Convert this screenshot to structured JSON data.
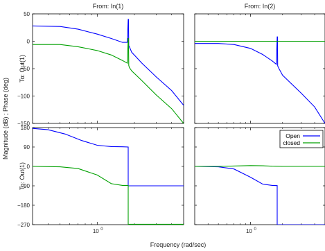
{
  "chart_data": {
    "type": "line",
    "title": "",
    "column_titles": [
      "From: In(1)",
      "From: In(2)"
    ],
    "row_labels": [
      "To: Out(1)",
      "To: Out(1)"
    ],
    "ylabel": "Magnitude (dB) ; Phase (deg)",
    "xlabel": "Frequency  (rad/sec)",
    "x_scale": "log",
    "x_ticks": [
      1
    ],
    "x_tick_labels": [
      "10",
      "10"
    ],
    "x_tick_exponent": "0",
    "xlim": [
      0.3,
      5
    ],
    "magnitude_ylim": [
      -150,
      50
    ],
    "magnitude_yticks": [
      50,
      0,
      -50,
      -100,
      -150
    ],
    "magnitude_ytick_labels": [
      "50",
      "0",
      "−50",
      "−100",
      "−150"
    ],
    "phase_ylim": [
      -270,
      180
    ],
    "phase_yticks": [
      180,
      90,
      0,
      -90,
      -180,
      -270
    ],
    "phase_ytick_labels": [
      "180",
      "90",
      "0",
      "−90",
      "−180",
      "−270"
    ],
    "colors": {
      "open": "#0000ff",
      "closed": "#00a000"
    },
    "legend": {
      "entries": [
        "Open",
        "closed"
      ],
      "location": "top-right of lower-right panel"
    },
    "panels": [
      {
        "row": 0,
        "col": 0,
        "kind": "magnitude",
        "series": [
          {
            "name": "Open",
            "x": [
              0.3,
              0.5,
              0.7,
              1.0,
              1.3,
              1.6,
              1.75,
              1.78,
              1.79,
              1.8,
              1.82,
              1.9,
              2.3,
              3.0,
              4.0,
              5.0
            ],
            "y": [
              28,
              27,
              22,
              13,
              5,
              -2,
              -2,
              40,
              40,
              -8,
              -10,
              -20,
              -40,
              -65,
              -90,
              -117
            ]
          },
          {
            "name": "closed",
            "x": [
              0.3,
              0.5,
              0.7,
              1.0,
              1.3,
              1.6,
              1.75,
              1.78,
              1.79,
              1.8,
              1.82,
              1.9,
              2.3,
              3.0,
              4.0,
              5.0
            ],
            "y": [
              -6,
              -6,
              -10,
              -17,
              -25,
              -35,
              -40,
              5,
              5,
              -44,
              -48,
              -54,
              -72,
              -98,
              -123,
              -150
            ]
          }
        ]
      },
      {
        "row": 0,
        "col": 1,
        "kind": "magnitude",
        "series": [
          {
            "name": "Open",
            "x": [
              0.3,
              0.5,
              0.7,
              1.0,
              1.3,
              1.6,
              1.75,
              1.78,
              1.79,
              1.8,
              1.85,
              2.0,
              3.0,
              4.0,
              5.0
            ],
            "y": [
              -4,
              -4,
              -6,
              -13,
              -24,
              -36,
              -42,
              8,
              8,
              -45,
              -50,
              -62,
              -95,
              -120,
              -150
            ]
          },
          {
            "name": "closed",
            "x": [
              0.3,
              5.0
            ],
            "y": [
              0,
              0
            ]
          }
        ]
      },
      {
        "row": 1,
        "col": 0,
        "kind": "phase",
        "series": [
          {
            "name": "Open",
            "x": [
              0.3,
              0.4,
              0.55,
              0.75,
              1.0,
              1.3,
              1.6,
              1.78,
              1.78,
              5.0
            ],
            "y": [
              176,
              170,
              150,
              120,
              98,
              92,
              91,
              90,
              -90,
              -90
            ]
          },
          {
            "name": "closed",
            "x": [
              0.3,
              0.5,
              0.7,
              1.0,
              1.3,
              1.6,
              1.78,
              1.78,
              5.0
            ],
            "y": [
              0,
              -2,
              -10,
              -40,
              -80,
              -88,
              -88,
              -268,
              -268
            ]
          }
        ]
      },
      {
        "row": 1,
        "col": 1,
        "kind": "phase",
        "series": [
          {
            "name": "Open",
            "x": [
              0.3,
              0.5,
              0.7,
              1.0,
              1.3,
              1.6,
              1.78,
              1.78,
              5.0
            ],
            "y": [
              0,
              -2,
              -12,
              -50,
              -82,
              -88,
              -89,
              -270,
              -270
            ]
          },
          {
            "name": "closed",
            "x": [
              0.3,
              0.5,
              0.7,
              1.0,
              1.3,
              1.6,
              2.0,
              5.0
            ],
            "y": [
              0,
              0,
              2,
              4,
              3,
              1,
              0,
              0
            ]
          }
        ]
      }
    ]
  }
}
